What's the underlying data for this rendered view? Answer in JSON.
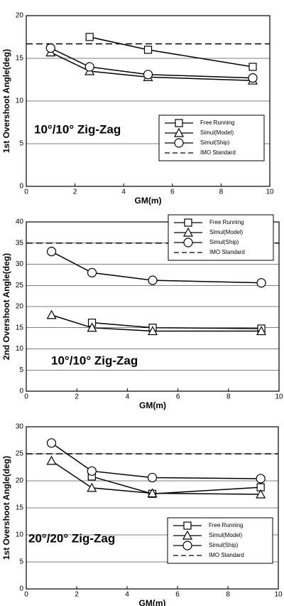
{
  "chart_data": [
    {
      "type": "line",
      "annotation": "10°/10° Zig-Zag",
      "x_label": "GM(m)",
      "y_label": "1st Overshoot Angle(deg)",
      "xlim": [
        0,
        10
      ],
      "xticks": [
        0,
        2,
        4,
        6,
        8,
        10
      ],
      "ylim": [
        0,
        20
      ],
      "yticks": [
        0,
        5,
        10,
        15,
        20
      ],
      "grid": true,
      "legend": "lower right",
      "series": [
        {
          "name": "Free Running",
          "color": "#000000",
          "marker": "square",
          "x": [
            2.6,
            5,
            9.3
          ],
          "values": [
            17.5,
            16,
            14
          ]
        },
        {
          "name": "Simul(Model)",
          "color": "#000000",
          "marker": "triangle",
          "x": [
            1,
            2.6,
            5,
            9.3
          ],
          "values": [
            15.7,
            13.5,
            12.8,
            12.4
          ]
        },
        {
          "name": "Simul(Ship)",
          "color": "#000000",
          "marker": "circle",
          "x": [
            1,
            2.6,
            5,
            9.3
          ],
          "values": [
            16.2,
            14,
            13.1,
            12.7
          ]
        },
        {
          "name": "IMO Standard",
          "color": "#000000",
          "dashed": true,
          "x": [
            0,
            10
          ],
          "values": [
            16.7,
            16.7
          ]
        }
      ]
    },
    {
      "type": "line",
      "annotation": "10°/10° Zig-Zag",
      "x_label": "GM(m)",
      "y_label": "2nd Overshoot Angle(deg)",
      "xlim": [
        0,
        10
      ],
      "xticks": [
        0,
        2,
        4,
        6,
        8,
        10
      ],
      "ylim": [
        0,
        40
      ],
      "yticks": [
        0,
        5,
        10,
        15,
        20,
        25,
        30,
        35,
        40
      ],
      "grid": true,
      "legend": "upper right",
      "series": [
        {
          "name": "Free Running",
          "color": "#000000",
          "marker": "square",
          "x": [
            2.6,
            5,
            9.3
          ],
          "values": [
            16.2,
            15,
            14.8
          ]
        },
        {
          "name": "Simul(Model)",
          "color": "#000000",
          "marker": "triangle",
          "x": [
            1,
            2.6,
            5,
            9.3
          ],
          "values": [
            18,
            15,
            14.2,
            14.2
          ]
        },
        {
          "name": "Simul(Ship)",
          "color": "#000000",
          "marker": "circle",
          "x": [
            1,
            2.6,
            5,
            9.3
          ],
          "values": [
            33,
            28,
            26.2,
            25.6
          ]
        },
        {
          "name": "IMO Standard",
          "color": "#000000",
          "dashed": true,
          "x": [
            0,
            10
          ],
          "values": [
            35,
            35
          ]
        }
      ]
    },
    {
      "type": "line",
      "annotation": "20°/20° Zig-Zag",
      "x_label": "GM(m)",
      "y_label": "1st Overshoot Angle(deg)",
      "xlim": [
        0,
        10
      ],
      "xticks": [
        0,
        2,
        4,
        6,
        8,
        10
      ],
      "ylim": [
        0,
        30
      ],
      "yticks": [
        0,
        5,
        10,
        15,
        20,
        25,
        30
      ],
      "grid": true,
      "legend": "lower right",
      "series": [
        {
          "name": "Free Running",
          "color": "#000000",
          "marker": "square",
          "x": [
            2.6,
            5,
            9.3
          ],
          "values": [
            20.8,
            17.6,
            18.8
          ]
        },
        {
          "name": "Simul(Model)",
          "color": "#000000",
          "marker": "triangle",
          "x": [
            1,
            2.6,
            5,
            9.3
          ],
          "values": [
            23.7,
            18.7,
            17.7,
            17.5
          ]
        },
        {
          "name": "Simul(Ship)",
          "color": "#000000",
          "marker": "circle",
          "x": [
            1,
            2.6,
            5,
            9.3
          ],
          "values": [
            27,
            21.8,
            20.6,
            20.4
          ]
        },
        {
          "name": "IMO Standard",
          "color": "#000000",
          "dashed": true,
          "x": [
            0,
            10
          ],
          "values": [
            25,
            25
          ]
        }
      ]
    }
  ]
}
